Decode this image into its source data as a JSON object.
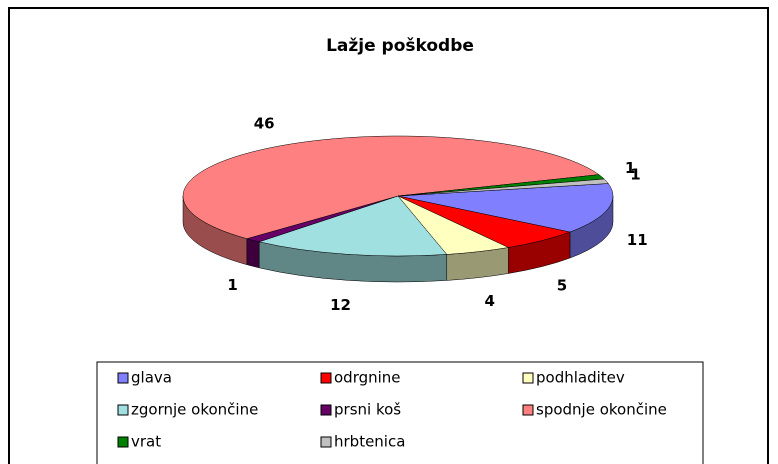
{
  "chart_data": {
    "type": "pie",
    "title": "Lažje poškodbe",
    "categories": [
      "glava",
      "odrgnine",
      "podhladitev",
      "zgornje okončine",
      "prsni koš",
      "spodnje okončine",
      "vrat",
      "hrbtenica"
    ],
    "values": [
      11,
      5,
      4,
      12,
      1,
      46,
      1,
      1
    ],
    "colors": [
      "#8080ff",
      "#ff0000",
      "#ffffc0",
      "#a0e0e0",
      "#660066",
      "#ff8080",
      "#008000",
      "#c0c0c0"
    ],
    "legend": "bottom"
  }
}
